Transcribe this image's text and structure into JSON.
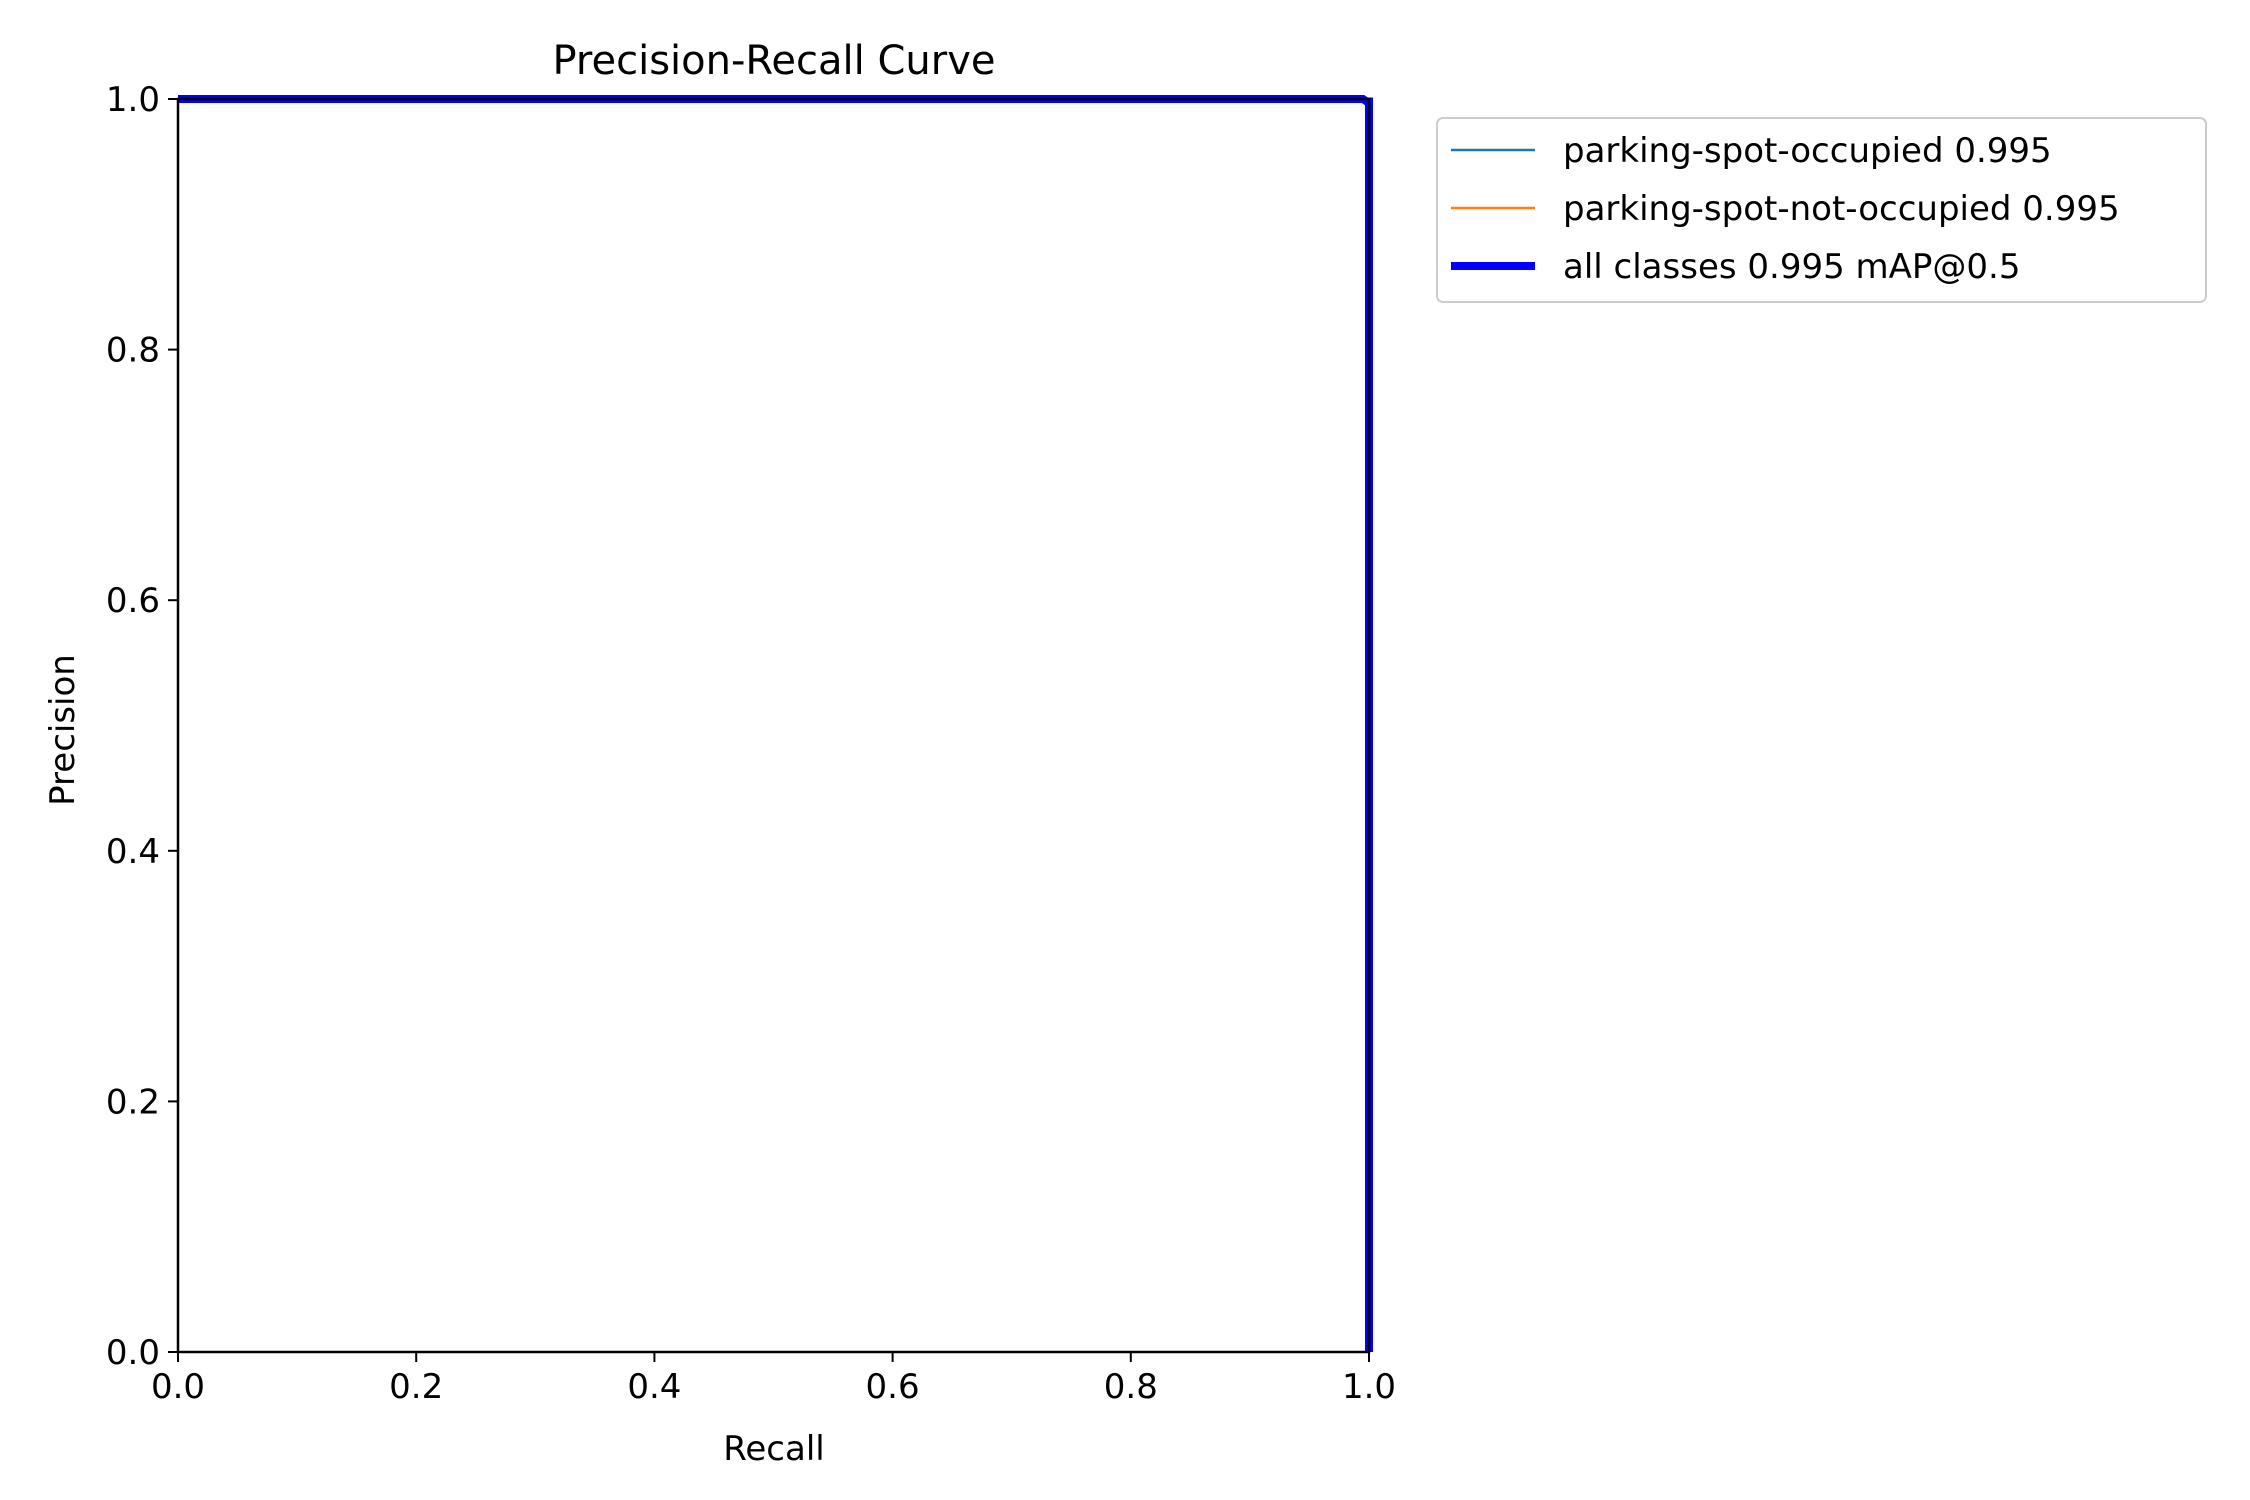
{
  "chart_data": {
    "type": "line",
    "title": "Precision-Recall Curve",
    "xlabel": "Recall",
    "ylabel": "Precision",
    "xlim": [
      0.0,
      1.0
    ],
    "ylim": [
      0.0,
      1.0
    ],
    "x_ticks": [
      "0.0",
      "0.2",
      "0.4",
      "0.6",
      "0.8",
      "1.0"
    ],
    "y_ticks": [
      "0.0",
      "0.2",
      "0.4",
      "0.6",
      "0.8",
      "1.0"
    ],
    "grid": false,
    "legend_position": "outside-top-right",
    "series": [
      {
        "name": "parking-spot-occupied 0.995",
        "color": "#1f77b4",
        "line": "thin",
        "x": [
          0.0,
          0.995,
          0.998,
          1.0,
          1.0
        ],
        "y": [
          1.0,
          1.0,
          0.998,
          0.998,
          0.0
        ]
      },
      {
        "name": "parking-spot-not-occupied 0.995",
        "color": "#ff7f0e",
        "line": "thin",
        "x": [
          0.0,
          0.995,
          0.998,
          1.0,
          1.0
        ],
        "y": [
          1.0,
          1.0,
          0.998,
          0.998,
          0.0
        ]
      },
      {
        "name": "all classes 0.995 mAP@0.5",
        "color": "#0000ff",
        "line": "thick",
        "x": [
          0.0,
          0.995,
          0.998,
          1.0,
          1.0
        ],
        "y": [
          1.0,
          1.0,
          0.998,
          0.998,
          0.0
        ]
      }
    ]
  }
}
